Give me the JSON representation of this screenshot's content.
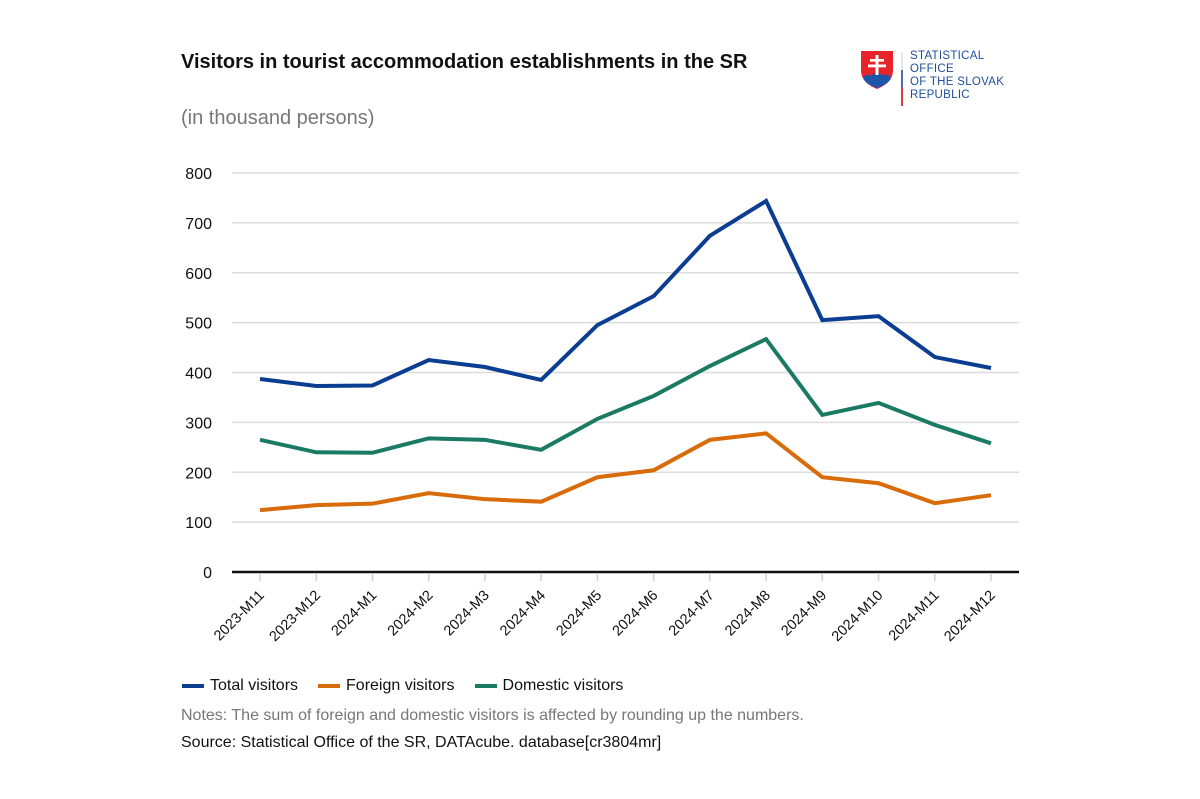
{
  "header": {
    "title": "Visitors in tourist accommodation establishments in the SR",
    "subtitle": "(in thousand persons)"
  },
  "logo": {
    "name": "shield-coat-of-arms",
    "lines": [
      "STATISTICAL",
      "OFFICE",
      "OF THE SLOVAK",
      "REPUBLIC"
    ],
    "color": "#1d4f9a"
  },
  "footer": {
    "notes": "Notes: The sum of foreign and domestic visitors is affected by rounding up the numbers.",
    "source": "Source: Statistical Office of the SR, DATAcube. database[cr3804mr]"
  },
  "chart_data": {
    "type": "line",
    "title": "Visitors in tourist accommodation establishments in the SR",
    "subtitle": "(in thousand persons)",
    "xlabel": "",
    "ylabel": "",
    "ylim": [
      0,
      800
    ],
    "yticks": [
      0,
      100,
      200,
      300,
      400,
      500,
      600,
      700,
      800
    ],
    "grid": true,
    "legend_position": "bottom-left",
    "categories": [
      "2023-M11",
      "2023-M12",
      "2024-M1",
      "2024-M2",
      "2024-M3",
      "2024-M4",
      "2024-M5",
      "2024-M6",
      "2024-M7",
      "2024-M8",
      "2024-M9",
      "2024-M10",
      "2024-M11",
      "2024-M12"
    ],
    "series": [
      {
        "name": "Total visitors",
        "color": "#0b3d91",
        "values": [
          387,
          373,
          374,
          425,
          411,
          385,
          495,
          553,
          674,
          744,
          505,
          513,
          431,
          409
        ]
      },
      {
        "name": "Foreign visitors",
        "color": "#d96c0a",
        "values": [
          124,
          134,
          137,
          158,
          146,
          141,
          190,
          204,
          265,
          278,
          190,
          178,
          138,
          154
        ]
      },
      {
        "name": "Domestic visitors",
        "color": "#1b7a63",
        "values": [
          265,
          240,
          239,
          268,
          265,
          245,
          307,
          353,
          413,
          467,
          315,
          339,
          295,
          258
        ]
      }
    ]
  }
}
